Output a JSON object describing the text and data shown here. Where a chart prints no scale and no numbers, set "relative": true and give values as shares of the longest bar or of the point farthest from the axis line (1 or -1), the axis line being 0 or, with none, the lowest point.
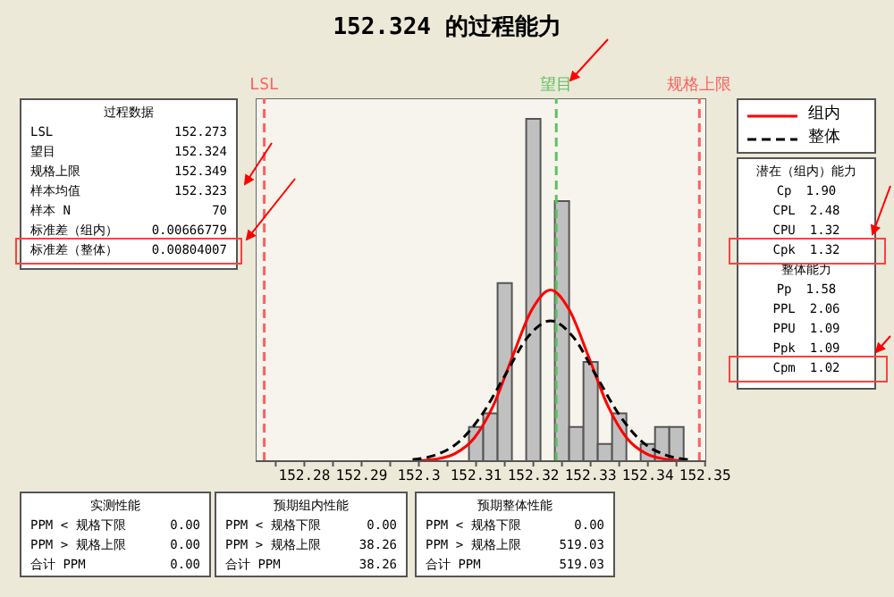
{
  "chart_data": {
    "type": "histogram",
    "title": "152.324 的过程能力",
    "relative": true,
    "bins": [
      152.30875,
      152.31125,
      152.31375,
      152.31625,
      152.31875,
      152.32125,
      152.32375,
      152.32625,
      152.32875,
      152.33125,
      152.33375,
      152.33625,
      152.33875,
      152.34125,
      152.34375,
      152.34625
    ],
    "values": [
      0.1,
      0.14,
      0.52,
      0,
      1,
      0,
      0.76,
      0.1,
      0.29,
      0.05,
      0.14,
      0,
      0.05,
      0.1,
      0.1
    ],
    "color": "#c0c0c0",
    "xlim": [
      152.2715,
      152.3502
    ],
    "xticks": [
      {
        "value": 152.275,
        "label": null
      },
      152.28,
      {
        "value": 152.285,
        "label": null
      },
      152.29,
      {
        "value": 152.295,
        "label": null
      },
      152.3,
      {
        "value": 152.305,
        "label": null
      },
      152.31,
      {
        "value": 152.315,
        "label": null
      },
      152.32,
      {
        "value": 152.325,
        "label": null
      },
      152.33,
      {
        "value": 152.335,
        "label": null
      },
      152.34,
      {
        "value": 152.345,
        "label": null
      },
      152.35
    ],
    "series": [
      {
        "name": "组内",
        "type": "line",
        "color": "#ff0000",
        "line_style": "solid",
        "x": [
          152.2997,
          152.303,
          152.3063,
          152.3097,
          152.313,
          152.3163,
          152.3197,
          152.323,
          152.3263,
          152.3297,
          152.333,
          152.3363,
          152.3397,
          152.343,
          152.3463
        ],
        "values": [
          0.001,
          0.006,
          0.022,
          0.068,
          0.162,
          0.303,
          0.441,
          0.5,
          0.441,
          0.303,
          0.162,
          0.068,
          0.022,
          0.006,
          0.001
        ]
      },
      {
        "name": "整体",
        "type": "line",
        "color": "#000000",
        "line_style": "dashed",
        "x": [
          152.2989,
          152.3029,
          152.3069,
          152.3109,
          152.315,
          152.319,
          152.323,
          152.327,
          152.331,
          152.3351,
          152.3391,
          152.3431,
          152.3471
        ],
        "values": [
          0.0046,
          0.018,
          0.055,
          0.133,
          0.249,
          0.362,
          0.41,
          0.362,
          0.249,
          0.133,
          0.055,
          0.018,
          0.0046
        ]
      }
    ],
    "ref_lines": [
      {
        "axis": "x",
        "value": 152.273,
        "label": "LSL",
        "color": "#ff6060",
        "line_style": "dashed"
      },
      {
        "axis": "x",
        "value": 152.324,
        "label": "望目",
        "color": "#60c060",
        "line_style": "dashed"
      },
      {
        "axis": "x",
        "value": 152.349,
        "label": "规格上限",
        "color": "#ff6060",
        "line_style": "dashed"
      }
    ],
    "legend": "top right",
    "annotations": [
      "过程数据",
      "LSL 152.273",
      "望目 152.324",
      "规格上限 152.349",
      "样本均值 152.323",
      "样本 N 70",
      "标准差（组内） 0.00666779",
      "标准差（整体） 0.00804007",
      "潜在（组内）能力",
      "Cp 1.90",
      "CPL 2.48",
      "CPU 1.32",
      "Cpk 1.32",
      "整体能力",
      "Pp 1.58",
      "PPL 2.06",
      "PPU 1.09",
      "Ppk 1.09",
      "Cpm 1.02",
      "实测性能",
      "PPM < 规格下限 0.00",
      "PPM > 规格上限 0.00",
      "合计 PPM 0.00",
      "预期组内性能",
      "PPM < 规格下限 0.00",
      "PPM > 规格上限 38.26",
      "合计 PPM 38.26",
      "预期整体性能",
      "PPM < 规格下限 0.00",
      "PPM > 规格上限 519.03",
      "合计 PPM 519.03"
    ]
  }
}
